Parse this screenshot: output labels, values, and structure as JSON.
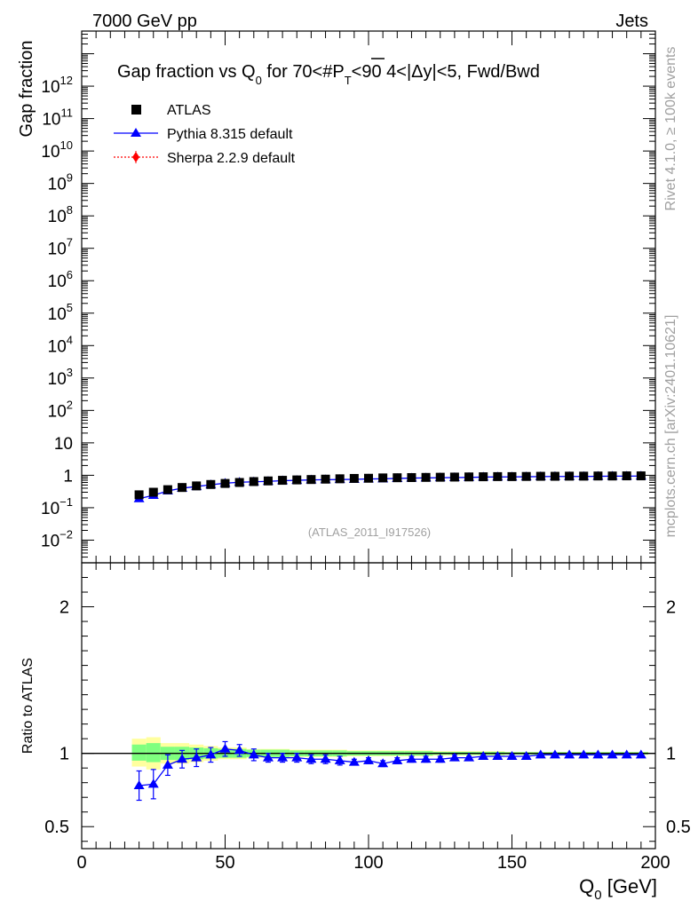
{
  "header": {
    "left": "7000 GeV pp",
    "right": "Jets"
  },
  "side_labels": {
    "rivet": "Rivet 4.1.0, ≥ 100k events",
    "site": "mcplots.cern.ch [arXiv:2401.10621]"
  },
  "colors": {
    "data": "#000000",
    "pythia": "#0000ff",
    "sherpa": "#ff0000",
    "band_inner": "#7fff7f",
    "band_outer": "#ffff9e",
    "watermark": "#a0a0a0"
  },
  "chart_data": [
    {
      "type": "scatter",
      "panel": "main",
      "title_parts": {
        "pre": "Gap fraction vs Q",
        "sub": "0",
        "mid": " for 70<#",
        "overline": "P",
        "ptsub": "T",
        "post": "<90  4<|Δy|<5, Fwd/Bwd"
      },
      "ylabel": "Gap fraction",
      "yscale": "log",
      "ylim": [
        0.002,
        50000000000000
      ],
      "xlim": [
        0,
        200
      ],
      "y_ticks": [
        {
          "v": 0.01,
          "base": "10",
          "exp": "−2"
        },
        {
          "v": 0.1,
          "base": "10",
          "exp": "−1"
        },
        {
          "v": 1,
          "base": "1",
          "exp": ""
        },
        {
          "v": 10,
          "base": "10",
          "exp": ""
        },
        {
          "v": 100,
          "base": "10",
          "exp": "2"
        },
        {
          "v": 1000,
          "base": "10",
          "exp": "3"
        },
        {
          "v": 10000,
          "base": "10",
          "exp": "4"
        },
        {
          "v": 100000,
          "base": "10",
          "exp": "5"
        },
        {
          "v": 1000000,
          "base": "10",
          "exp": "6"
        },
        {
          "v": 10000000,
          "base": "10",
          "exp": "7"
        },
        {
          "v": 100000000,
          "base": "10",
          "exp": "8"
        },
        {
          "v": 1000000000,
          "base": "10",
          "exp": "9"
        },
        {
          "v": 10000000000,
          "base": "10",
          "exp": "10"
        },
        {
          "v": 100000000000,
          "base": "10",
          "exp": "11"
        },
        {
          "v": 1000000000000,
          "base": "10",
          "exp": "12"
        }
      ],
      "legend": [
        {
          "key": "data",
          "label": "ATLAS",
          "marker": "square"
        },
        {
          "key": "pythia",
          "label": "Pythia 8.315 default",
          "marker": "triangle"
        },
        {
          "key": "sherpa",
          "label": "Sherpa 2.2.9 default",
          "marker": "diamond"
        }
      ],
      "legend_position": "top-left",
      "watermark": "(ATLAS_2011_I917526)",
      "x": [
        20,
        25,
        30,
        35,
        40,
        45,
        50,
        55,
        60,
        65,
        70,
        75,
        80,
        85,
        90,
        95,
        100,
        105,
        110,
        115,
        120,
        125,
        130,
        135,
        140,
        145,
        150,
        155,
        160,
        165,
        170,
        175,
        180,
        185,
        190,
        195
      ],
      "series": [
        {
          "name": "ATLAS",
          "values": [
            0.25,
            0.3,
            0.36,
            0.42,
            0.47,
            0.52,
            0.56,
            0.6,
            0.64,
            0.67,
            0.7,
            0.72,
            0.74,
            0.76,
            0.78,
            0.8,
            0.81,
            0.83,
            0.84,
            0.85,
            0.86,
            0.87,
            0.88,
            0.89,
            0.9,
            0.91,
            0.91,
            0.92,
            0.93,
            0.93,
            0.94,
            0.94,
            0.95,
            0.95,
            0.96,
            0.96
          ]
        },
        {
          "name": "Pythia 8.315 default",
          "values": [
            0.19,
            0.24,
            0.33,
            0.4,
            0.45,
            0.51,
            0.57,
            0.61,
            0.63,
            0.65,
            0.68,
            0.7,
            0.72,
            0.73,
            0.74,
            0.75,
            0.77,
            0.78,
            0.8,
            0.82,
            0.83,
            0.84,
            0.85,
            0.86,
            0.88,
            0.89,
            0.89,
            0.9,
            0.91,
            0.92,
            0.92,
            0.92,
            0.93,
            0.94,
            0.94,
            0.95
          ]
        }
      ]
    },
    {
      "type": "scatter",
      "panel": "ratio",
      "ylabel": "Ratio to ATLAS",
      "xlabel_main": "Q",
      "xlabel_sub": "0",
      "xlabel_unit": " [GeV]",
      "ylim": [
        0.35,
        2.3
      ],
      "xlim": [
        0,
        200
      ],
      "y_ticks": [
        {
          "v": 0.5,
          "label": "0.5"
        },
        {
          "v": 1,
          "label": "1"
        },
        {
          "v": 2,
          "label": "2"
        }
      ],
      "x_ticks": [
        {
          "v": 0,
          "label": "0"
        },
        {
          "v": 50,
          "label": "50"
        },
        {
          "v": 100,
          "label": "100"
        },
        {
          "v": 150,
          "label": "150"
        },
        {
          "v": 200,
          "label": "200"
        }
      ],
      "x": [
        20,
        25,
        30,
        35,
        40,
        45,
        50,
        55,
        60,
        65,
        70,
        75,
        80,
        85,
        90,
        95,
        100,
        105,
        110,
        115,
        120,
        125,
        130,
        135,
        140,
        145,
        150,
        155,
        160,
        165,
        170,
        175,
        180,
        185,
        190,
        195
      ],
      "ratio_values": [
        0.78,
        0.79,
        0.92,
        0.96,
        0.97,
        0.99,
        1.03,
        1.02,
        0.99,
        0.97,
        0.97,
        0.97,
        0.96,
        0.96,
        0.95,
        0.94,
        0.95,
        0.93,
        0.95,
        0.96,
        0.96,
        0.96,
        0.97,
        0.97,
        0.98,
        0.98,
        0.98,
        0.98,
        0.99,
        0.99,
        0.99,
        0.99,
        0.99,
        0.99,
        0.99,
        0.99
      ],
      "ratio_errors": [
        0.1,
        0.1,
        0.07,
        0.06,
        0.06,
        0.05,
        0.05,
        0.04,
        0.04,
        0.03,
        0.03,
        0.03,
        0.03,
        0.03,
        0.03,
        0.02,
        0.02,
        0.02,
        0.02,
        0.02,
        0.02,
        0.02,
        0.02,
        0.01,
        0.01,
        0.01,
        0.01,
        0.01,
        0.01,
        0.01,
        0.01,
        0.01,
        0.01,
        0.01,
        0.01,
        0.01
      ],
      "band_x": [
        [
          17.5,
          22.5
        ],
        [
          22.5,
          27.5
        ],
        [
          27.5,
          32.5
        ],
        [
          32.5,
          37.5
        ],
        [
          37.5,
          42.5
        ],
        [
          42.5,
          47.5
        ],
        [
          47.5,
          52.5
        ],
        [
          52.5,
          57.5
        ],
        [
          57.5,
          62.5
        ],
        [
          62.5,
          67.5
        ],
        [
          67.5,
          72.5
        ],
        [
          72.5,
          77.5
        ],
        [
          77.5,
          82.5
        ],
        [
          82.5,
          87.5
        ],
        [
          87.5,
          92.5
        ],
        [
          92.5,
          97.5
        ],
        [
          97.5,
          102.5
        ],
        [
          102.5,
          107.5
        ],
        [
          107.5,
          112.5
        ],
        [
          112.5,
          117.5
        ],
        [
          117.5,
          122.5
        ],
        [
          122.5,
          127.5
        ],
        [
          127.5,
          132.5
        ],
        [
          132.5,
          137.5
        ],
        [
          137.5,
          142.5
        ],
        [
          142.5,
          147.5
        ],
        [
          147.5,
          152.5
        ],
        [
          152.5,
          157.5
        ],
        [
          157.5,
          162.5
        ],
        [
          162.5,
          167.5
        ],
        [
          167.5,
          172.5
        ],
        [
          172.5,
          177.5
        ],
        [
          177.5,
          182.5
        ],
        [
          182.5,
          187.5
        ],
        [
          187.5,
          192.5
        ],
        [
          192.5,
          197.5
        ]
      ],
      "band_outer": [
        [
          0.91,
          1.1
        ],
        [
          0.89,
          1.11
        ],
        [
          0.93,
          1.07
        ],
        [
          0.93,
          1.07
        ],
        [
          0.94,
          1.06
        ],
        [
          0.95,
          1.05
        ],
        [
          0.96,
          1.04
        ],
        [
          0.96,
          1.04
        ],
        [
          0.97,
          1.03
        ],
        [
          0.97,
          1.03
        ],
        [
          0.97,
          1.03
        ],
        [
          0.975,
          1.025
        ],
        [
          0.975,
          1.025
        ],
        [
          0.975,
          1.025
        ],
        [
          0.975,
          1.025
        ],
        [
          0.98,
          1.02
        ],
        [
          0.98,
          1.02
        ],
        [
          0.98,
          1.02
        ],
        [
          0.98,
          1.02
        ],
        [
          0.98,
          1.02
        ],
        [
          0.98,
          1.02
        ],
        [
          0.985,
          1.015
        ],
        [
          0.985,
          1.015
        ],
        [
          0.985,
          1.015
        ],
        [
          0.985,
          1.015
        ],
        [
          0.985,
          1.015
        ],
        [
          0.99,
          1.01
        ],
        [
          0.99,
          1.01
        ],
        [
          0.99,
          1.01
        ],
        [
          0.99,
          1.01
        ],
        [
          0.99,
          1.01
        ],
        [
          0.99,
          1.01
        ],
        [
          0.99,
          1.01
        ],
        [
          0.99,
          1.01
        ],
        [
          0.99,
          1.01
        ],
        [
          0.99,
          1.01
        ]
      ],
      "band_inner": [
        [
          0.95,
          1.06
        ],
        [
          0.94,
          1.07
        ],
        [
          0.955,
          1.045
        ],
        [
          0.955,
          1.045
        ],
        [
          0.96,
          1.04
        ],
        [
          0.965,
          1.035
        ],
        [
          0.97,
          1.03
        ],
        [
          0.97,
          1.03
        ],
        [
          0.975,
          1.025
        ],
        [
          0.975,
          1.025
        ],
        [
          0.975,
          1.025
        ],
        [
          0.98,
          1.02
        ],
        [
          0.98,
          1.02
        ],
        [
          0.98,
          1.02
        ],
        [
          0.98,
          1.02
        ],
        [
          0.985,
          1.015
        ],
        [
          0.985,
          1.015
        ],
        [
          0.985,
          1.015
        ],
        [
          0.985,
          1.015
        ],
        [
          0.985,
          1.015
        ],
        [
          0.985,
          1.015
        ],
        [
          0.99,
          1.01
        ],
        [
          0.99,
          1.01
        ],
        [
          0.99,
          1.01
        ],
        [
          0.99,
          1.01
        ],
        [
          0.99,
          1.01
        ],
        [
          0.992,
          1.008
        ],
        [
          0.992,
          1.008
        ],
        [
          0.992,
          1.008
        ],
        [
          0.992,
          1.008
        ],
        [
          0.992,
          1.008
        ],
        [
          0.992,
          1.008
        ],
        [
          0.992,
          1.008
        ],
        [
          0.992,
          1.008
        ],
        [
          0.992,
          1.008
        ],
        [
          0.992,
          1.008
        ]
      ]
    }
  ]
}
